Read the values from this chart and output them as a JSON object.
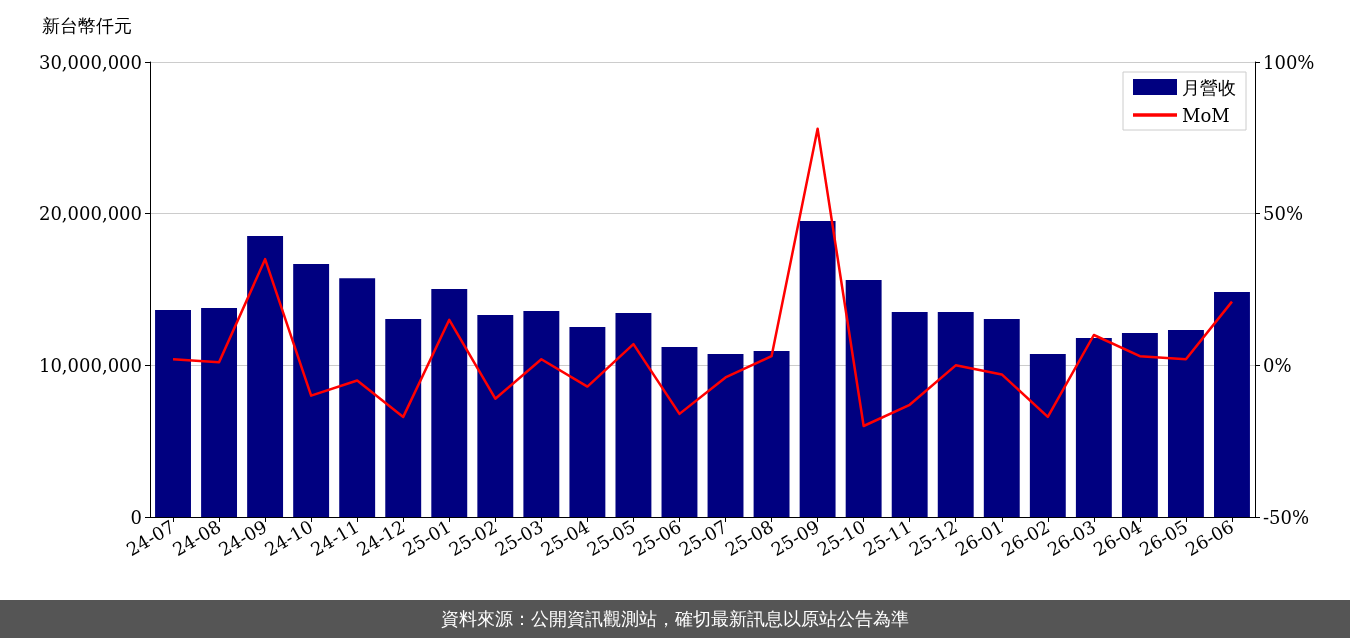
{
  "chart_data": {
    "type": "bar",
    "ylabel": "新台幣仟元",
    "categories": [
      "24-07",
      "24-08",
      "24-09",
      "24-10",
      "24-11",
      "24-12",
      "25-01",
      "25-02",
      "25-03",
      "25-04",
      "25-05",
      "25-06",
      "25-07",
      "25-08",
      "25-09",
      "25-10",
      "25-11",
      "25-12",
      "26-01",
      "26-02",
      "26-03",
      "26-04",
      "26-05",
      "26-06"
    ],
    "series": [
      {
        "name": "月營收",
        "color": "#000080",
        "values": [
          13650000,
          13780000,
          18520000,
          16680000,
          15750000,
          13050000,
          15030000,
          13320000,
          13580000,
          12520000,
          13450000,
          11210000,
          10740000,
          10940000,
          19510000,
          15620000,
          13510000,
          13510000,
          13050000,
          10740000,
          11800000,
          12130000,
          12330000,
          14830000
        ]
      },
      {
        "type": "line",
        "name": "MoM",
        "color": "#ff0000",
        "axis": "y2",
        "values": [
          2,
          1,
          35,
          -10,
          -5,
          -17,
          15,
          -11,
          2,
          -7,
          7,
          -16,
          -4,
          3,
          78,
          -20,
          -13,
          0,
          -3,
          -17,
          10,
          3,
          2,
          21
        ]
      }
    ],
    "ylim": [
      0,
      30000000
    ],
    "yticks": [
      0,
      {
        "value": 10000000,
        "label": "10,000,000"
      },
      {
        "value": 20000000,
        "label": "20,000,000"
      },
      {
        "value": 30000000,
        "label": "30,000,000"
      }
    ],
    "y2lim": [
      -50,
      100
    ],
    "y2ticks": [
      {
        "value": -50,
        "label": "-50%"
      },
      {
        "value": 0,
        "label": "0%"
      },
      {
        "value": 50,
        "label": "50%"
      },
      {
        "value": 100,
        "label": "100%"
      }
    ],
    "grid": "y",
    "legend": "top right",
    "annotations": [
      "資料來源：公開資訊觀測站，確切最新訊息以原站公告為準"
    ]
  }
}
